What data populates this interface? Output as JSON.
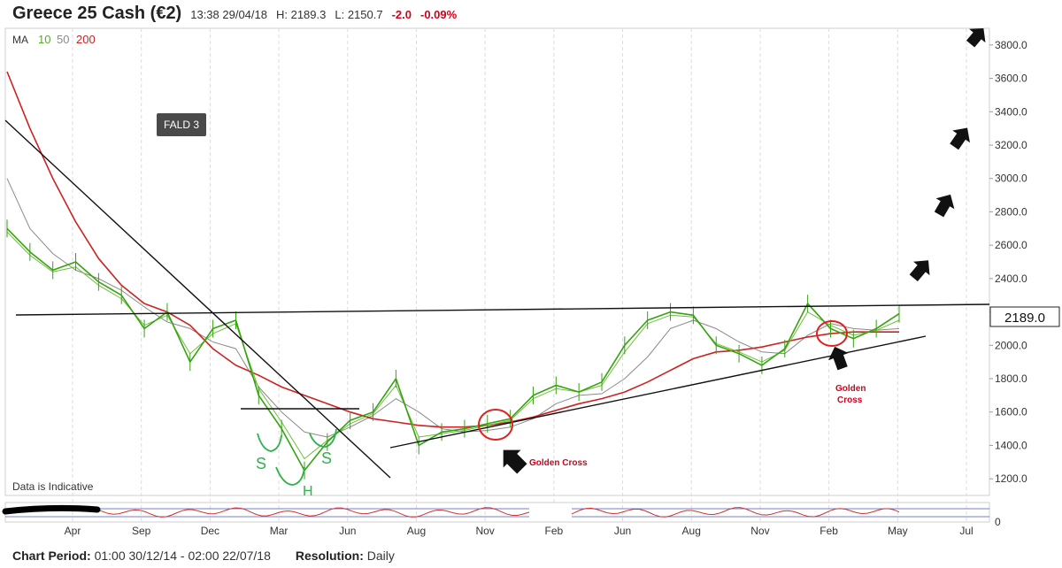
{
  "header": {
    "title": "Greece 25 Cash (€2)",
    "datetime": "13:38 29/04/18",
    "high": "H: 2189.3",
    "low": "L: 2150.7",
    "change": "-2.0",
    "change_pct": "-0.09%"
  },
  "legend": {
    "label": "MA",
    "ma10": "10",
    "ma50": "50",
    "ma200": "200"
  },
  "annotations": {
    "fald": "FALD 3",
    "indicative": "Data is Indicative",
    "golden_cross_1": "Golden Cross",
    "golden_cross_2_line1": "Golden",
    "golden_cross_2_line2": "Cross",
    "hs_s1": "S",
    "hs_h": "H",
    "hs_s2": "S"
  },
  "last_price": "2189.0",
  "footer": {
    "period_label": "Chart Period:",
    "period_value": "01:00 30/12/14 - 02:00 22/07/18",
    "resolution_label": "Resolution:",
    "resolution_value": "Daily"
  },
  "colors": {
    "price": "#35a30f",
    "ma10": "#6fbf3c",
    "ma50": "#8a8a8a",
    "ma200": "#cc2222",
    "header_red": "#d0021b",
    "oscillator": "#3344aa"
  },
  "chart_data": {
    "type": "line",
    "ylim": [
      1100,
      3900
    ],
    "yticks": [
      1200,
      1400,
      1600,
      1800,
      2000,
      2200,
      2400,
      2600,
      2800,
      3000,
      3200,
      3400,
      3600,
      3800
    ],
    "xticks": [
      "Apr",
      "Sep",
      "Dec",
      "Mar",
      "Jun",
      "Aug",
      "Nov",
      "Feb",
      "Jun",
      "Aug",
      "Nov",
      "Feb",
      "May",
      "Jul"
    ],
    "oscillator_ticks": [
      0
    ],
    "series": [
      {
        "key": "price",
        "values": [
          2700,
          2560,
          2450,
          2500,
          2380,
          2300,
          2100,
          2200,
          1900,
          2100,
          2150,
          1700,
          1500,
          1250,
          1420,
          1550,
          1600,
          1800,
          1400,
          1480,
          1500,
          1530,
          1560,
          1700,
          1760,
          1720,
          1780,
          2000,
          2150,
          2200,
          2180,
          2000,
          1950,
          1880,
          1980,
          2250,
          2100,
          2040,
          2100,
          2189
        ]
      },
      {
        "key": "ma10",
        "values": [
          2680,
          2540,
          2440,
          2470,
          2360,
          2280,
          2120,
          2180,
          1950,
          2070,
          2130,
          1740,
          1540,
          1320,
          1430,
          1530,
          1590,
          1760,
          1450,
          1470,
          1490,
          1520,
          1550,
          1680,
          1740,
          1720,
          1760,
          1960,
          2130,
          2180,
          2170,
          2010,
          1960,
          1900,
          1970,
          2200,
          2120,
          2060,
          2090,
          2150
        ]
      },
      {
        "key": "ma50",
        "values": [
          3000,
          2700,
          2550,
          2450,
          2400,
          2330,
          2230,
          2140,
          2100,
          2020,
          1980,
          1750,
          1600,
          1480,
          1450,
          1510,
          1580,
          1680,
          1600,
          1500,
          1480,
          1490,
          1510,
          1560,
          1650,
          1700,
          1710,
          1800,
          1930,
          2100,
          2150,
          2100,
          2020,
          1960,
          1950,
          2060,
          2130,
          2100,
          2090,
          2100
        ]
      },
      {
        "key": "ma200",
        "values": [
          3640,
          3300,
          3000,
          2740,
          2520,
          2360,
          2250,
          2200,
          2120,
          1980,
          1880,
          1820,
          1750,
          1700,
          1650,
          1600,
          1560,
          1540,
          1520,
          1510,
          1510,
          1520,
          1540,
          1570,
          1610,
          1650,
          1680,
          1720,
          1780,
          1850,
          1920,
          1960,
          1970,
          1990,
          2020,
          2050,
          2070,
          2080,
          2080,
          2080
        ]
      }
    ]
  }
}
